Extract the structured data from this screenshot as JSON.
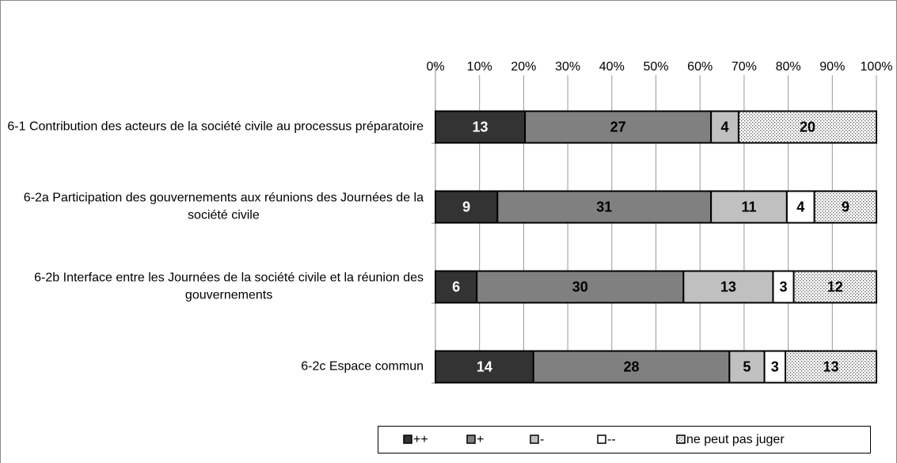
{
  "chart_data": {
    "type": "bar",
    "orientation": "horizontal",
    "stacking": "percent",
    "categories": [
      "6-1 Contribution des acteurs de la société civile au processus préparatoire",
      "6-2a Participation des gouvernements aux réunions des Journées de la société civile",
      "6-2b Interface entre les Journées de la société civile et la réunion des gouvernements",
      "6-2c Espace commun"
    ],
    "series": [
      {
        "name": "++",
        "color": "#333333",
        "label_color": "#ffffff",
        "values": [
          13,
          9,
          6,
          14
        ]
      },
      {
        "name": "+",
        "color": "#808080",
        "label_color": "#000000",
        "values": [
          27,
          31,
          30,
          28
        ]
      },
      {
        "name": "-",
        "color": "#c0c0c0",
        "label_color": "#000000",
        "values": [
          4,
          11,
          13,
          5
        ]
      },
      {
        "name": "--",
        "color": "#ffffff",
        "label_color": "#000000",
        "values": [
          null,
          4,
          3,
          3
        ]
      },
      {
        "name": "ne peut pas juger",
        "color": "dotted",
        "label_color": "#000000",
        "values": [
          20,
          9,
          12,
          13
        ]
      }
    ],
    "xlim": [
      0,
      100
    ],
    "xticks": [
      {
        "value": 0,
        "label": "0%"
      },
      {
        "value": 10,
        "label": "10%"
      },
      {
        "value": 20,
        "label": "20%"
      },
      {
        "value": 30,
        "label": "30%"
      },
      {
        "value": 40,
        "label": "40%"
      },
      {
        "value": 50,
        "label": "50%"
      },
      {
        "value": 60,
        "label": "60%"
      },
      {
        "value": 70,
        "label": "70%"
      },
      {
        "value": 80,
        "label": "80%"
      },
      {
        "value": 90,
        "label": "90%"
      },
      {
        "value": 100,
        "label": "100%"
      }
    ],
    "grid": true,
    "legend": "bottom"
  }
}
